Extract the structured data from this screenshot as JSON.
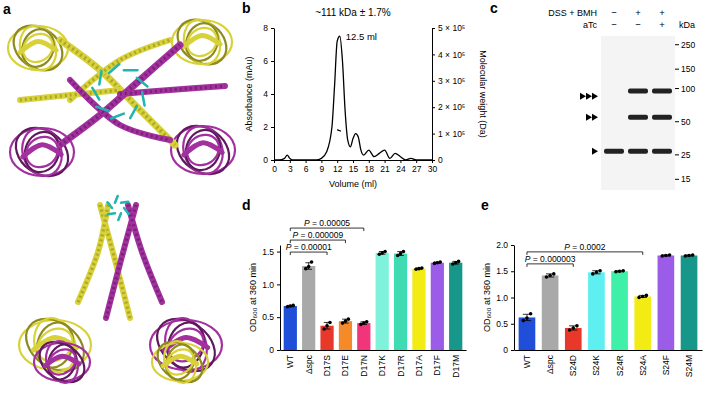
{
  "chart_data": [
    {
      "type": "line",
      "panel_label": "b",
      "title": "~111 kDa ± 1.7%",
      "annotations": [
        "12.5 ml"
      ],
      "xlabel": "Volume (ml)",
      "ylabel": "Absorbance (mAu)",
      "y2label": "Molecular weight (Da)",
      "xlim": [
        0,
        30
      ],
      "xticks": [
        0,
        3,
        6,
        9,
        12,
        15,
        18,
        21,
        24,
        27,
        30
      ],
      "ylim": [
        0,
        8
      ],
      "yticks": [
        0,
        2,
        4,
        6,
        8
      ],
      "y2lim": [
        0,
        500000
      ],
      "y2ticks": [
        0,
        {
          "value": 100000,
          "label": "1 × 10⁵"
        },
        {
          "value": 200000,
          "label": "2 × 10⁵"
        },
        {
          "value": 300000,
          "label": "3 × 10⁵"
        },
        {
          "value": 400000,
          "label": "4 × 10⁵"
        },
        {
          "value": 500000,
          "label": "5 × 10⁵"
        }
      ],
      "x": [
        0,
        1,
        2,
        2.5,
        3,
        3.5,
        4,
        5,
        6,
        7,
        8,
        9,
        10,
        11,
        11.5,
        12,
        12.5,
        13,
        13.5,
        14,
        14.5,
        15,
        15.5,
        16,
        16.5,
        17,
        18,
        19,
        20,
        21,
        22,
        23,
        24,
        25,
        26,
        27,
        28,
        29,
        30
      ],
      "series": [
        {
          "color": "#000000",
          "line_style": "solid",
          "values": [
            0,
            0,
            0.1,
            0.3,
            0.1,
            0,
            0,
            0,
            0,
            0,
            0,
            0.1,
            0.5,
            2.0,
            4.5,
            7.2,
            7.5,
            6.0,
            3.0,
            1.2,
            0.8,
            1.3,
            1.6,
            1.4,
            0.6,
            0.3,
            0.6,
            0.2,
            0.4,
            0.6,
            0.1,
            0.4,
            0.2,
            0,
            0.1,
            0,
            0,
            0,
            0
          ]
        },
        {
          "color": "#000000",
          "line_style": "dashed",
          "axis": "y2",
          "x": [
            12,
            12.5,
            13
          ],
          "values": [
            115000,
            111000,
            108000
          ]
        }
      ]
    },
    {
      "type": "bar",
      "panel_label": "d",
      "ylabel": "OD₆₀₀ at 360 min",
      "categories": [
        "WT",
        "Δspc",
        "D17S",
        "D17E",
        "D17N",
        "D17K",
        "D17R",
        "D17A",
        "D17F",
        "D17M"
      ],
      "values": [
        0.67,
        1.28,
        0.37,
        0.44,
        0.41,
        1.48,
        1.47,
        1.24,
        1.33,
        1.33
      ],
      "errors": [
        0.01,
        0.05,
        0.05,
        0.03,
        0.02,
        0.02,
        0.03,
        0.01,
        0.01,
        0.02
      ],
      "points": [
        [
          0.66,
          0.67,
          0.68
        ],
        [
          1.24,
          1.27,
          1.34
        ],
        [
          0.32,
          0.37,
          0.42
        ],
        [
          0.41,
          0.44,
          0.47
        ],
        [
          0.39,
          0.41,
          0.43
        ],
        [
          1.46,
          1.48,
          1.5
        ],
        [
          1.44,
          1.47,
          1.5
        ],
        [
          1.23,
          1.24,
          1.25
        ],
        [
          1.32,
          1.33,
          1.34
        ],
        [
          1.31,
          1.33,
          1.35
        ]
      ],
      "colors": [
        "#1f4fd8",
        "#a9a9a9",
        "#e8382a",
        "#f58a2a",
        "#f0357a",
        "#7ff2dc",
        "#3fdcb4",
        "#f2ec14",
        "#9b5de8",
        "#17968a"
      ],
      "ylim": [
        0,
        1.6
      ],
      "yticks": [
        0,
        0.5,
        {
          "value": 1,
          "label": "1.0"
        },
        1.5
      ],
      "comparisons": [
        {
          "from": "WT",
          "to": "D17S",
          "label": "P = 0.00001"
        },
        {
          "from": "WT",
          "to": "D17E",
          "label": "P = 0.000009"
        },
        {
          "from": "WT",
          "to": "D17N",
          "label": "P = 0.00005"
        }
      ]
    },
    {
      "type": "bar",
      "panel_label": "e",
      "ylabel": "OD₆₀₀ at 360 min",
      "categories": [
        "WT",
        "Δspc",
        "S24D",
        "S24K",
        "S24R",
        "S24A",
        "S24F",
        "S24M"
      ],
      "values": [
        0.62,
        1.42,
        0.42,
        1.48,
        1.5,
        1.02,
        1.8,
        1.8
      ],
      "errors": [
        0.06,
        0.03,
        0.04,
        0.03,
        0.01,
        0.02,
        0.01,
        0.01
      ],
      "points": [
        [
          0.56,
          0.61,
          0.69
        ],
        [
          1.39,
          1.42,
          1.45
        ],
        [
          0.38,
          0.42,
          0.46
        ],
        [
          1.45,
          1.48,
          1.51
        ],
        [
          1.49,
          1.5,
          1.51
        ],
        [
          1.0,
          1.02,
          1.04
        ],
        [
          1.79,
          1.8,
          1.81
        ],
        [
          1.79,
          1.8,
          1.81
        ]
      ],
      "colors": [
        "#1f4fd8",
        "#a9a9a9",
        "#e8382a",
        "#5ef0f0",
        "#3ff0a8",
        "#f2ec14",
        "#9b5de8",
        "#17968a"
      ],
      "ylim": [
        0,
        2
      ],
      "yticks": [
        0,
        0.5,
        {
          "value": 1,
          "label": "1.0"
        },
        1.5,
        {
          "value": 2,
          "label": "2.0"
        }
      ],
      "comparisons": [
        {
          "from": "WT",
          "to": "S24D",
          "label": "P = 0.000003"
        },
        {
          "from": "WT",
          "to": "S24A",
          "label": "P = 0.0002"
        }
      ]
    }
  ],
  "panel_a": {
    "panel_label": "a"
  },
  "gel": {
    "panel_label": "c",
    "rows": [
      {
        "label": "DSS + BMH",
        "lanes": [
          "−",
          "+",
          "+"
        ]
      },
      {
        "label": "aTc",
        "lanes": [
          "−",
          "−",
          "+"
        ]
      }
    ],
    "unit": "kDa",
    "ylim": [
      12,
      300
    ],
    "markers": [
      250,
      150,
      100,
      50,
      25,
      15
    ],
    "bands": [
      {
        "lane": 0,
        "kda": 27
      },
      {
        "lane": 1,
        "kda": 27
      },
      {
        "lane": 1,
        "kda": 55
      },
      {
        "lane": 1,
        "kda": 95
      },
      {
        "lane": 2,
        "kda": 27
      },
      {
        "lane": 2,
        "kda": 55
      },
      {
        "lane": 2,
        "kda": 95
      }
    ],
    "arrows": [
      {
        "kda": 85,
        "count": 3
      },
      {
        "kda": 55,
        "count": 2
      },
      {
        "kda": 27,
        "count": 1
      }
    ]
  }
}
